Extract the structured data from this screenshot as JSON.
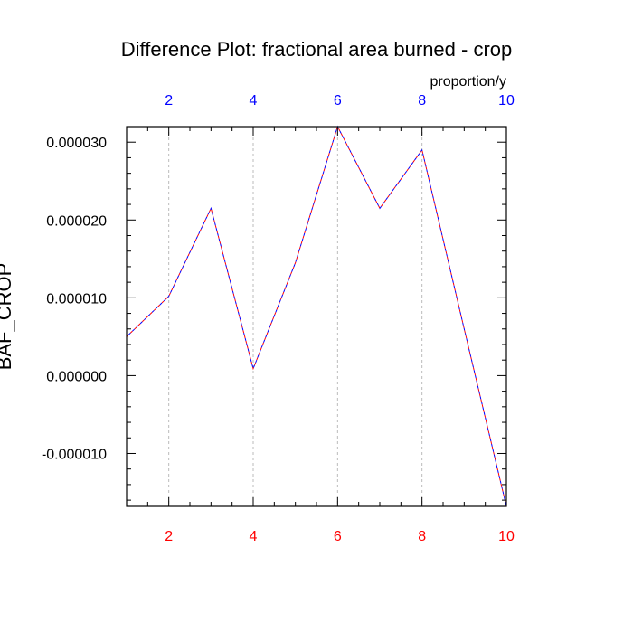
{
  "chart_data": {
    "type": "line",
    "title": "Difference Plot: fractional area burned - crop",
    "units": "proportion/y",
    "ylabel": "BAF_CROP",
    "xlabel": "",
    "xlim": [
      1,
      10
    ],
    "ylim": [
      -1.68e-05,
      3.2e-05
    ],
    "x_ticks": [
      2,
      4,
      6,
      8,
      10
    ],
    "x_tick_labels": [
      "2",
      "4",
      "6",
      "8",
      "10"
    ],
    "y_ticks": [
      -1e-05,
      0,
      1e-05,
      2e-05,
      3e-05
    ],
    "y_tick_labels": [
      "-0.000010",
      "0.000000",
      "0.000010",
      "0.000020",
      "0.000030"
    ],
    "grid": "vertical dashed at major x ticks",
    "colors": {
      "top_axis_labels": "#0000ff",
      "bottom_axis_labels": "#ff0000",
      "series_dash_a": "#ff0000",
      "series_dash_b": "#0000ff",
      "grid": "#bbbbbb",
      "frame": "#000000"
    },
    "series": [
      {
        "x": [
          1,
          2,
          3,
          4,
          5,
          6,
          7,
          8,
          9,
          10
        ],
        "values": [
          5e-06,
          1.02e-05,
          2.15e-05,
          9e-07,
          1.45e-05,
          3.2e-05,
          2.15e-05,
          2.9e-05,
          6e-06,
          -1.68e-05
        ]
      }
    ]
  }
}
